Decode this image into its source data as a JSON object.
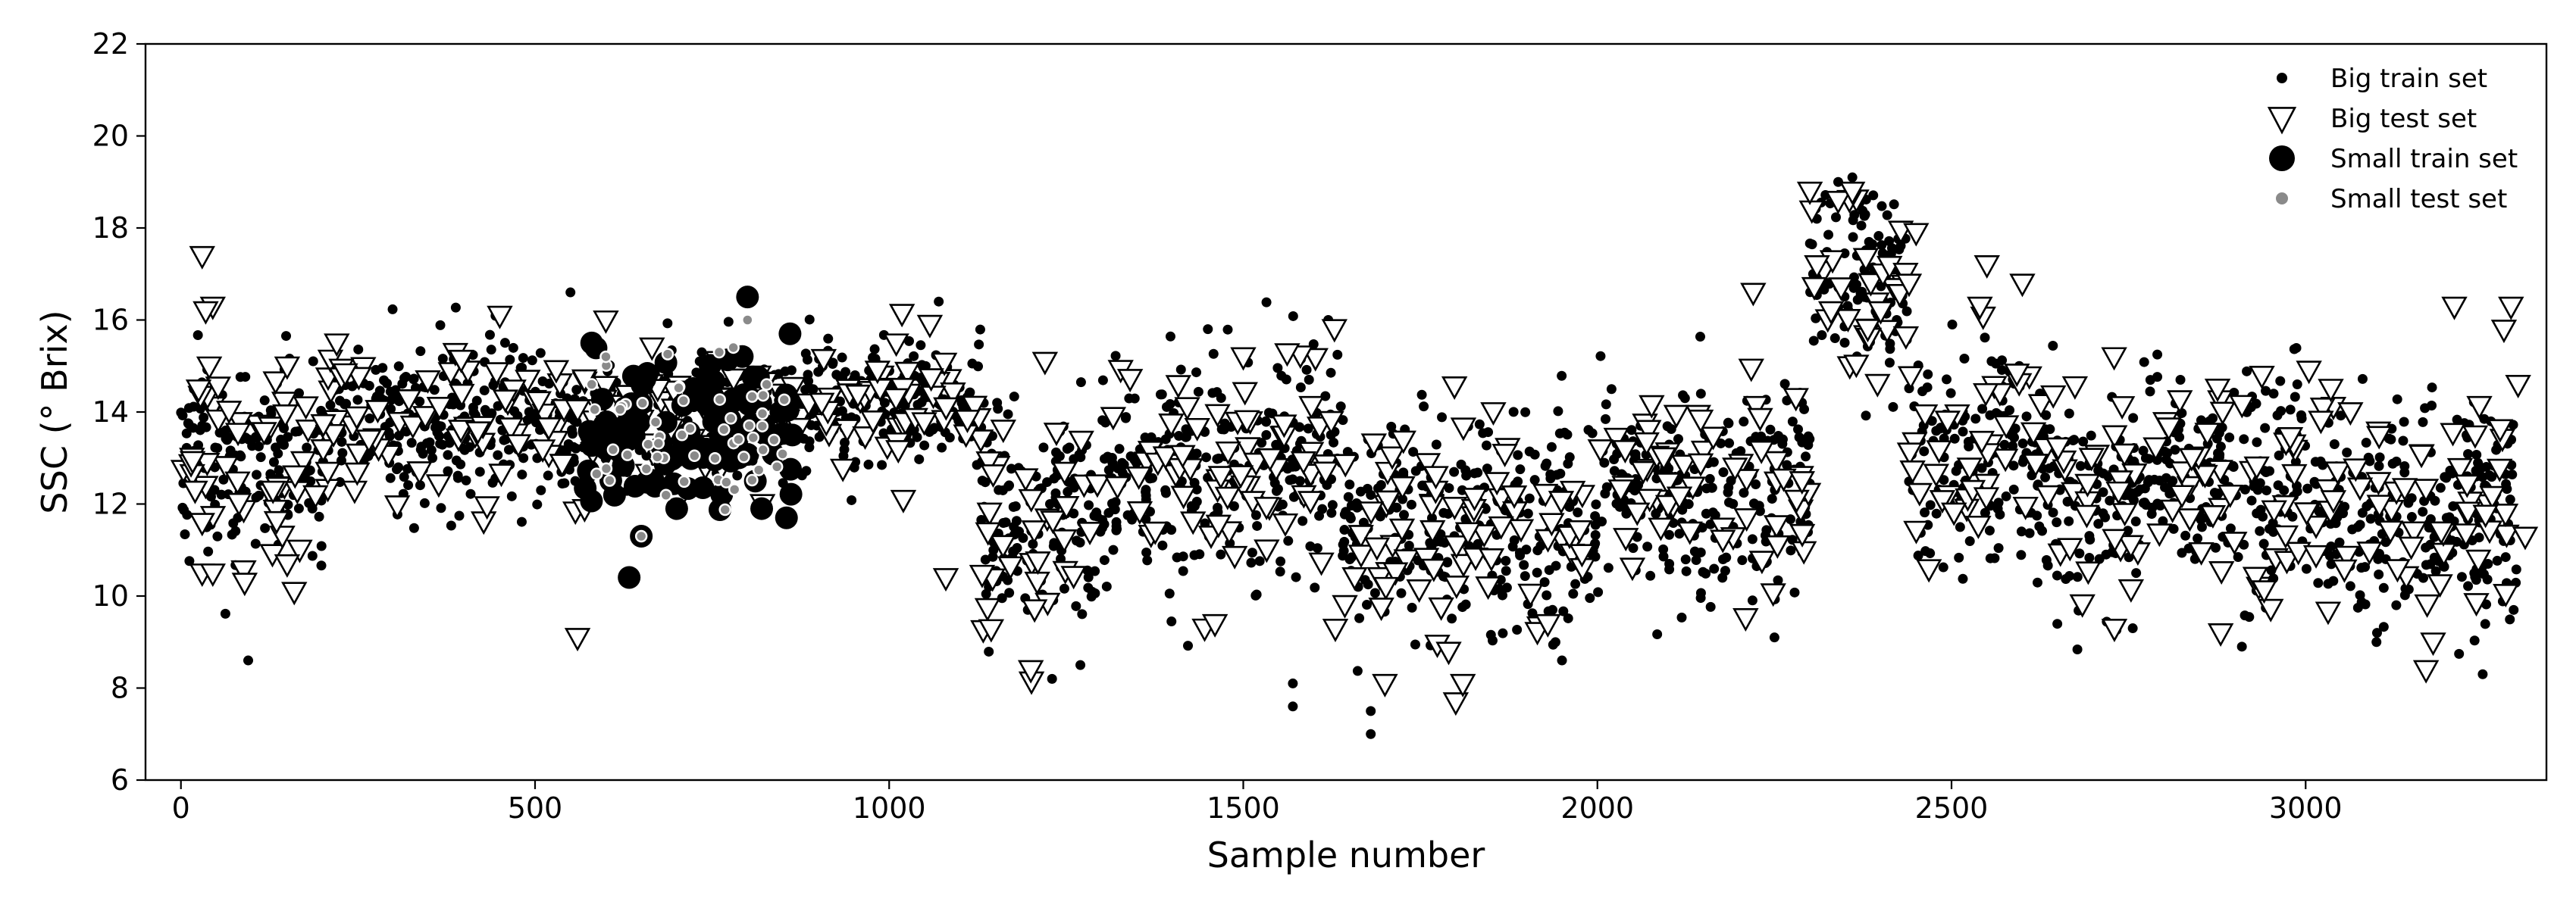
{
  "chart_data": {
    "type": "scatter",
    "title": "",
    "xlabel": "Sample number",
    "ylabel": "SSC (° Brix)",
    "xlim": [
      -50,
      3340
    ],
    "ylim": [
      6,
      22
    ],
    "xticks": [
      0,
      500,
      1000,
      1500,
      2000,
      2500,
      3000
    ],
    "yticks": [
      6,
      8,
      10,
      12,
      14,
      16,
      18,
      20,
      22
    ],
    "legend_position": "top-right",
    "grid": false,
    "series": [
      {
        "name": "Big train set",
        "marker": "small-filled-circle",
        "color": "#000000",
        "approx_count": 2600,
        "segments": [
          {
            "x": [
              0,
              200
            ],
            "mean": 13.0,
            "spread": 1.4,
            "density": 0.8
          },
          {
            "x": [
              200,
              560
            ],
            "mean": 13.8,
            "spread": 1.2,
            "density": 0.8
          },
          {
            "x": [
              560,
              880
            ],
            "mean": 13.8,
            "spread": 1.1,
            "density": 0.5
          },
          {
            "x": [
              880,
              1130
            ],
            "mean": 14.3,
            "spread": 0.9,
            "density": 0.8
          },
          {
            "x": [
              1130,
              1300
            ],
            "mean": 11.8,
            "spread": 1.5,
            "density": 0.8
          },
          {
            "x": [
              1300,
              1520
            ],
            "mean": 12.6,
            "spread": 1.5,
            "density": 0.8
          },
          {
            "x": [
              1520,
              1640
            ],
            "mean": 13.0,
            "spread": 1.6,
            "density": 0.8
          },
          {
            "x": [
              1640,
              1760
            ],
            "mean": 11.6,
            "spread": 1.6,
            "density": 0.8
          },
          {
            "x": [
              1760,
              2000
            ],
            "mean": 11.5,
            "spread": 1.5,
            "density": 0.8
          },
          {
            "x": [
              2000,
              2300
            ],
            "mean": 12.5,
            "spread": 1.6,
            "density": 0.8
          },
          {
            "x": [
              2300,
              2440
            ],
            "mean": 16.8,
            "spread": 1.3,
            "density": 0.8
          },
          {
            "x": [
              2440,
              2640
            ],
            "mean": 13.2,
            "spread": 1.5,
            "density": 0.8
          },
          {
            "x": [
              2640,
              2780
            ],
            "mean": 12.0,
            "spread": 1.5,
            "density": 0.8
          },
          {
            "x": [
              2780,
              3000
            ],
            "mean": 12.6,
            "spread": 1.5,
            "density": 0.8
          },
          {
            "x": [
              3000,
              3300
            ],
            "mean": 11.8,
            "spread": 1.5,
            "density": 0.8
          }
        ],
        "highlighted_points": [
          {
            "x": 95,
            "y": 8.6
          },
          {
            "x": 1680,
            "y": 7.0
          },
          {
            "x": 1680,
            "y": 7.5
          },
          {
            "x": 1570,
            "y": 7.6
          },
          {
            "x": 1570,
            "y": 8.1
          },
          {
            "x": 3250,
            "y": 8.3
          },
          {
            "x": 2360,
            "y": 19.1
          },
          {
            "x": 2340,
            "y": 19.0
          },
          {
            "x": 550,
            "y": 16.6
          },
          {
            "x": 1070,
            "y": 16.4
          },
          {
            "x": 1450,
            "y": 15.8
          },
          {
            "x": 1620,
            "y": 16.0
          },
          {
            "x": 1230,
            "y": 8.2
          },
          {
            "x": 1270,
            "y": 8.5
          },
          {
            "x": 1950,
            "y": 8.6
          },
          {
            "x": 2250,
            "y": 9.1
          },
          {
            "x": 3100,
            "y": 9.0
          },
          {
            "x": 2910,
            "y": 8.9
          }
        ]
      },
      {
        "name": "Big test set",
        "marker": "open-triangle-down",
        "color": "#000000",
        "approx_count": 700,
        "points": [
          {
            "x": 30,
            "y": 17.4
          },
          {
            "x": 45,
            "y": 16.3
          },
          {
            "x": 35,
            "y": 16.2
          },
          {
            "x": 25,
            "y": 14.5
          },
          {
            "x": 40,
            "y": 15.0
          },
          {
            "x": 20,
            "y": 12.3
          },
          {
            "x": 30,
            "y": 11.6
          },
          {
            "x": 30,
            "y": 10.5
          },
          {
            "x": 45,
            "y": 10.5
          },
          {
            "x": 80,
            "y": 12.5
          },
          {
            "x": 90,
            "y": 10.3
          },
          {
            "x": 130,
            "y": 12.3
          },
          {
            "x": 150,
            "y": 10.7
          },
          {
            "x": 160,
            "y": 10.1
          },
          {
            "x": 150,
            "y": 15.0
          },
          {
            "x": 190,
            "y": 12.2
          },
          {
            "x": 220,
            "y": 15.5
          },
          {
            "x": 560,
            "y": 9.1
          },
          {
            "x": 570,
            "y": 11.9
          },
          {
            "x": 600,
            "y": 16.0
          },
          {
            "x": 1010,
            "y": 15.5
          },
          {
            "x": 1020,
            "y": 12.1
          },
          {
            "x": 1080,
            "y": 10.4
          },
          {
            "x": 1200,
            "y": 8.4
          },
          {
            "x": 1220,
            "y": 15.1
          },
          {
            "x": 1460,
            "y": 9.4
          },
          {
            "x": 1500,
            "y": 15.2
          },
          {
            "x": 1630,
            "y": 9.3
          },
          {
            "x": 1700,
            "y": 8.1
          },
          {
            "x": 1790,
            "y": 8.8
          },
          {
            "x": 1800,
            "y": 7.7
          },
          {
            "x": 1810,
            "y": 8.1
          },
          {
            "x": 1930,
            "y": 9.4
          },
          {
            "x": 2220,
            "y": 16.6
          },
          {
            "x": 2300,
            "y": 18.8
          },
          {
            "x": 2340,
            "y": 18.6
          },
          {
            "x": 2360,
            "y": 18.8
          },
          {
            "x": 2310,
            "y": 17.2
          },
          {
            "x": 2330,
            "y": 16.2
          },
          {
            "x": 2400,
            "y": 16.2
          },
          {
            "x": 2450,
            "y": 17.9
          },
          {
            "x": 2440,
            "y": 16.8
          },
          {
            "x": 2550,
            "y": 17.2
          },
          {
            "x": 2600,
            "y": 16.8
          },
          {
            "x": 2540,
            "y": 16.3
          },
          {
            "x": 2730,
            "y": 9.3
          },
          {
            "x": 2880,
            "y": 9.2
          },
          {
            "x": 3170,
            "y": 8.4
          },
          {
            "x": 3180,
            "y": 9.0
          },
          {
            "x": 3210,
            "y": 16.3
          },
          {
            "x": 3290,
            "y": 16.3
          },
          {
            "x": 3280,
            "y": 15.8
          },
          {
            "x": 3300,
            "y": 14.6
          },
          {
            "x": 3310,
            "y": 11.3
          }
        ]
      },
      {
        "name": "Small train set",
        "marker": "large-filled-circle",
        "color": "#000000",
        "approx_count": 170,
        "segments": [
          {
            "x": [
              570,
              870
            ],
            "mean": 13.6,
            "spread": 1.1,
            "density": 0.55
          }
        ],
        "highlighted_points": [
          {
            "x": 800,
            "y": 16.5
          },
          {
            "x": 860,
            "y": 15.7
          },
          {
            "x": 580,
            "y": 15.5
          },
          {
            "x": 820,
            "y": 11.9
          },
          {
            "x": 855,
            "y": 11.7
          },
          {
            "x": 700,
            "y": 11.9
          },
          {
            "x": 650,
            "y": 11.3
          }
        ]
      },
      {
        "name": "Small test set",
        "marker": "small-filled-circle-white-edge",
        "color": "#888888",
        "approx_count": 90,
        "segments": [
          {
            "x": [
              570,
              860
            ],
            "mean": 13.5,
            "spread": 0.9,
            "density": 0.3
          }
        ],
        "highlighted_points": [
          {
            "x": 650,
            "y": 11.3
          },
          {
            "x": 800,
            "y": 16.0
          },
          {
            "x": 780,
            "y": 15.4
          },
          {
            "x": 760,
            "y": 15.3
          },
          {
            "x": 580,
            "y": 14.6
          },
          {
            "x": 600,
            "y": 15.2
          }
        ]
      }
    ]
  }
}
